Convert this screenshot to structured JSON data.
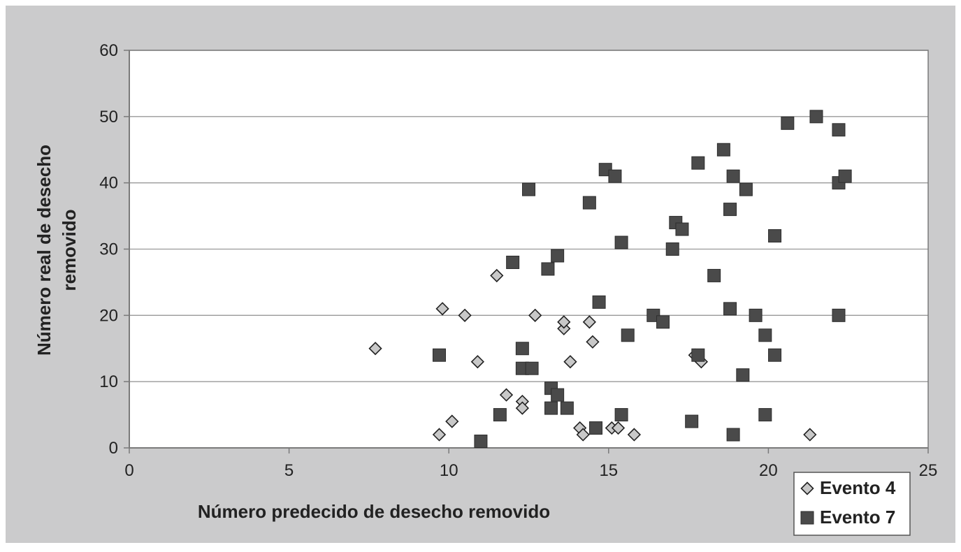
{
  "chart_data": {
    "type": "scatter",
    "title": "",
    "xlabel": "Número predecido de desecho removido",
    "ylabel_lines": [
      "Número real de desecho",
      "removido"
    ],
    "xlim": [
      0,
      25
    ],
    "ylim": [
      0,
      60
    ],
    "x_ticks": [
      0,
      5,
      10,
      15,
      20,
      25
    ],
    "y_ticks": [
      0,
      10,
      20,
      30,
      40,
      50,
      60
    ],
    "grid": "horizontal",
    "legend_position": "bottom-right",
    "series": [
      {
        "name": "Evento 4",
        "marker": "diamond",
        "color": "#c8c8c8",
        "points": [
          [
            7.7,
            15
          ],
          [
            9.7,
            2
          ],
          [
            9.8,
            21
          ],
          [
            10.1,
            4
          ],
          [
            10.5,
            20
          ],
          [
            10.9,
            13
          ],
          [
            11.5,
            26
          ],
          [
            11.8,
            8
          ],
          [
            12.3,
            7
          ],
          [
            12.3,
            6
          ],
          [
            12.7,
            20
          ],
          [
            13.6,
            18
          ],
          [
            13.6,
            19
          ],
          [
            13.8,
            13
          ],
          [
            14.1,
            3
          ],
          [
            14.2,
            2
          ],
          [
            14.4,
            19
          ],
          [
            14.5,
            16
          ],
          [
            15.1,
            3
          ],
          [
            15.3,
            3
          ],
          [
            15.8,
            2
          ],
          [
            17.7,
            14
          ],
          [
            17.9,
            13
          ],
          [
            21.3,
            2
          ]
        ]
      },
      {
        "name": "Evento 7",
        "marker": "square",
        "color": "#4a4a4a",
        "points": [
          [
            9.7,
            14
          ],
          [
            11.0,
            1
          ],
          [
            11.6,
            5
          ],
          [
            12.0,
            28
          ],
          [
            12.3,
            15
          ],
          [
            12.3,
            12
          ],
          [
            12.5,
            39
          ],
          [
            12.6,
            12
          ],
          [
            13.1,
            27
          ],
          [
            13.2,
            9
          ],
          [
            13.2,
            6
          ],
          [
            13.4,
            8
          ],
          [
            13.4,
            29
          ],
          [
            13.7,
            6
          ],
          [
            14.4,
            37
          ],
          [
            14.6,
            3
          ],
          [
            14.7,
            22
          ],
          [
            14.9,
            42
          ],
          [
            15.2,
            41
          ],
          [
            15.4,
            31
          ],
          [
            15.4,
            5
          ],
          [
            15.6,
            17
          ],
          [
            16.4,
            20
          ],
          [
            16.7,
            19
          ],
          [
            17.0,
            30
          ],
          [
            17.1,
            34
          ],
          [
            17.3,
            33
          ],
          [
            17.6,
            4
          ],
          [
            17.8,
            14
          ],
          [
            17.8,
            43
          ],
          [
            18.3,
            26
          ],
          [
            18.6,
            45
          ],
          [
            18.8,
            36
          ],
          [
            18.8,
            21
          ],
          [
            18.9,
            41
          ],
          [
            18.9,
            2
          ],
          [
            19.2,
            11
          ],
          [
            19.3,
            39
          ],
          [
            19.6,
            20
          ],
          [
            19.9,
            17
          ],
          [
            19.9,
            5
          ],
          [
            20.2,
            32
          ],
          [
            20.2,
            14
          ],
          [
            20.6,
            49
          ],
          [
            21.5,
            50
          ],
          [
            22.2,
            48
          ],
          [
            22.2,
            40
          ],
          [
            22.2,
            20
          ],
          [
            22.4,
            41
          ]
        ]
      }
    ]
  },
  "colors": {
    "frame": "#cbcbcc",
    "plot_bg": "#ffffff",
    "grid": "#999999",
    "axis": "#7a7a7a",
    "marker_outline": "#222222"
  }
}
